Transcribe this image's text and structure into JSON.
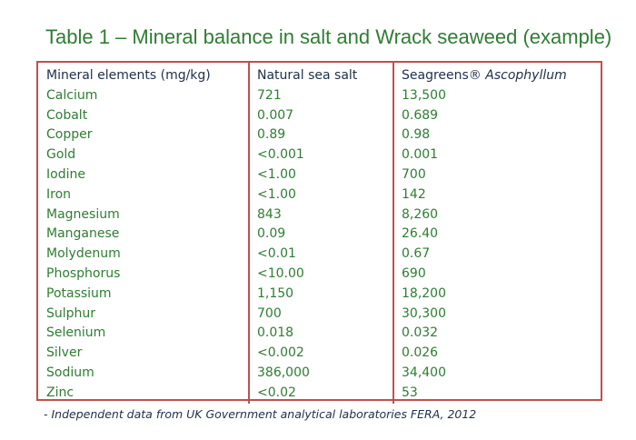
{
  "title": "Table 1 – Mineral balance in salt and Wrack seaweed (example)",
  "table": {
    "headers": {
      "mineral": "Mineral elements (mg/kg)",
      "salt": "Natural sea salt",
      "seaweed_prefix": "Seagreens® ",
      "seaweed_italic": "Ascophyllum"
    },
    "rows": [
      {
        "mineral": "Calcium",
        "salt": "721",
        "seaweed": "13,500"
      },
      {
        "mineral": "Cobalt",
        "salt": "0.007",
        "seaweed": "0.689"
      },
      {
        "mineral": "Copper",
        "salt": "0.89",
        "seaweed": "0.98"
      },
      {
        "mineral": "Gold",
        "salt": "<0.001",
        "seaweed": "0.001"
      },
      {
        "mineral": "Iodine",
        "salt": "<1.00",
        "seaweed": "700"
      },
      {
        "mineral": "Iron",
        "salt": "<1.00",
        "seaweed": "142"
      },
      {
        "mineral": "Magnesium",
        "salt": "843",
        "seaweed": "8,260"
      },
      {
        "mineral": "Manganese",
        "salt": "0.09",
        "seaweed": "26.40"
      },
      {
        "mineral": "Molydenum",
        "salt": "<0.01",
        "seaweed": "0.67"
      },
      {
        "mineral": "Phosphorus",
        "salt": "<10.00",
        "seaweed": "690"
      },
      {
        "mineral": "Potassium",
        "salt": "1,150",
        "seaweed": "18,200"
      },
      {
        "mineral": "Sulphur",
        "salt": "700",
        "seaweed": "30,300"
      },
      {
        "mineral": "Selenium",
        "salt": "0.018",
        "seaweed": "0.032"
      },
      {
        "mineral": "Silver",
        "salt": "<0.002",
        "seaweed": "0.026"
      },
      {
        "mineral": "Sodium",
        "salt": "386,000",
        "seaweed": "34,400"
      },
      {
        "mineral": "Zinc",
        "salt": "<0.02",
        "seaweed": "53"
      }
    ]
  },
  "footnote": "- Independent data from UK Government analytical laboratories FERA, 2012",
  "colors": {
    "title": "#2e7d32",
    "values": "#2e7d32",
    "header": "#1f2f4a",
    "border": "#c0504d"
  }
}
